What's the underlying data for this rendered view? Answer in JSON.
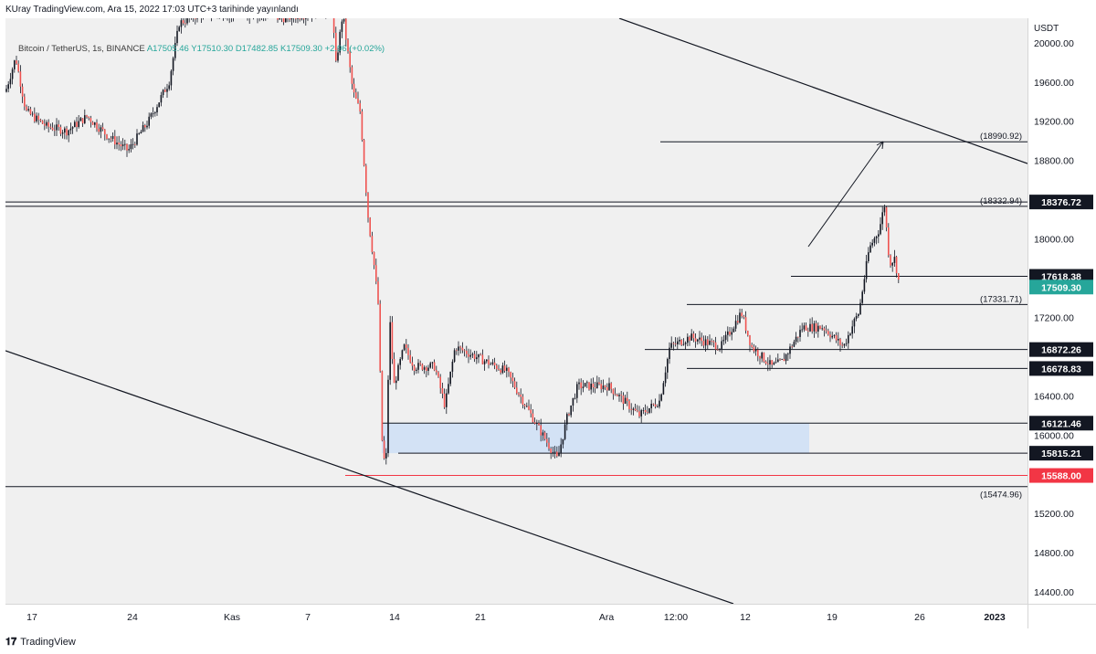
{
  "header": {
    "text": "KUray TradingView.com, Ara 15, 2022 17:03 UTC+3 tarihinde yayınlandı"
  },
  "legend": {
    "symbol": "Bitcoin / TetherUS, 1s, BINANCE",
    "open": "A17505.46",
    "high": "Y17510.30",
    "low": "D17482.85",
    "close": "K17509.30",
    "change": "+2.96 (+0.02%)"
  },
  "price_axis": {
    "currency": "USDT",
    "ticks": [
      "20000.00",
      "19600.00",
      "19200.00",
      "18800.00",
      "18000.00",
      "17200.00",
      "16400.00",
      "16000.00",
      "15200.00",
      "14800.00",
      "14400.00"
    ]
  },
  "time_axis": {
    "labels": [
      "17",
      "24",
      "Kas",
      "7",
      "14",
      "21",
      "Ara",
      "12:00",
      "12",
      "19",
      "26",
      "2023"
    ]
  },
  "brand": {
    "name": "TradingView",
    "logo_icon": "tradingview-logo-icon"
  },
  "colors": {
    "up": "#26a69a",
    "down": "#ef5350",
    "candle": "#131722",
    "support_zone": "#cfe0f5",
    "low_line": "#f23645",
    "current_price": "#26a69a"
  },
  "chart_data": {
    "type": "candlestick",
    "title": "Bitcoin / TetherUS, 1s, BINANCE",
    "y_unit": "USDT",
    "ylim": [
      14280,
      20250
    ],
    "grid": false,
    "price_labels": [
      {
        "label": "18376.72",
        "value": 18376.72,
        "style": "highlight"
      },
      {
        "label": "17618.38",
        "value": 17618.38,
        "style": "highlight"
      },
      {
        "label": "17509.30",
        "value": 17509.3,
        "style": "current"
      },
      {
        "label": "16872.26",
        "value": 16872.26,
        "style": "highlight"
      },
      {
        "label": "16678.83",
        "value": 16678.83,
        "style": "highlight"
      },
      {
        "label": "16121.46",
        "value": 16121.46,
        "style": "highlight"
      },
      {
        "label": "15815.21",
        "value": 15815.21,
        "style": "highlight"
      },
      {
        "label": "15588.00",
        "value": 15588.0,
        "style": "low"
      }
    ],
    "annotations": [
      {
        "label": "(18990.92)",
        "value": 18990.92
      },
      {
        "label": "(18332.94)",
        "value": 18332.94
      },
      {
        "label": "(17331.71)",
        "value": 17331.71
      },
      {
        "label": "(15474.96)",
        "value": 15474.96
      }
    ],
    "support_zone": {
      "from": 15815.21,
      "to": 16121.46
    },
    "price_path": [
      [
        0,
        19500
      ],
      [
        0.01,
        19850
      ],
      [
        0.02,
        19300
      ],
      [
        0.04,
        19150
      ],
      [
        0.06,
        19100
      ],
      [
        0.08,
        19250
      ],
      [
        0.1,
        19050
      ],
      [
        0.12,
        18900
      ],
      [
        0.14,
        19200
      ],
      [
        0.16,
        19600
      ],
      [
        0.17,
        20200
      ],
      [
        0.19,
        20300
      ],
      [
        0.24,
        20300
      ],
      [
        0.27,
        20250
      ],
      [
        0.3,
        20300
      ],
      [
        0.32,
        20350
      ],
      [
        0.323,
        19750
      ],
      [
        0.33,
        20300
      ],
      [
        0.34,
        19500
      ],
      [
        0.347,
        19300
      ],
      [
        0.355,
        18200
      ],
      [
        0.36,
        17800
      ],
      [
        0.365,
        17300
      ],
      [
        0.368,
        16000
      ],
      [
        0.372,
        15600
      ],
      [
        0.376,
        17200
      ],
      [
        0.38,
        16500
      ],
      [
        0.39,
        16900
      ],
      [
        0.4,
        16700
      ],
      [
        0.42,
        16700
      ],
      [
        0.43,
        16300
      ],
      [
        0.44,
        16900
      ],
      [
        0.46,
        16800
      ],
      [
        0.49,
        16650
      ],
      [
        0.52,
        16100
      ],
      [
        0.54,
        15750
      ],
      [
        0.55,
        16200
      ],
      [
        0.56,
        16500
      ],
      [
        0.59,
        16500
      ],
      [
        0.62,
        16200
      ],
      [
        0.64,
        16350
      ],
      [
        0.65,
        16900
      ],
      [
        0.67,
        17000
      ],
      [
        0.7,
        16900
      ],
      [
        0.72,
        17250
      ],
      [
        0.73,
        16900
      ],
      [
        0.75,
        16700
      ],
      [
        0.76,
        16750
      ],
      [
        0.78,
        17100
      ],
      [
        0.8,
        17100
      ],
      [
        0.82,
        16900
      ],
      [
        0.83,
        17150
      ],
      [
        0.835,
        17250
      ],
      [
        0.845,
        17900
      ],
      [
        0.855,
        18100
      ],
      [
        0.86,
        18350
      ],
      [
        0.865,
        17750
      ],
      [
        0.87,
        17800
      ],
      [
        0.875,
        17509
      ]
    ]
  }
}
